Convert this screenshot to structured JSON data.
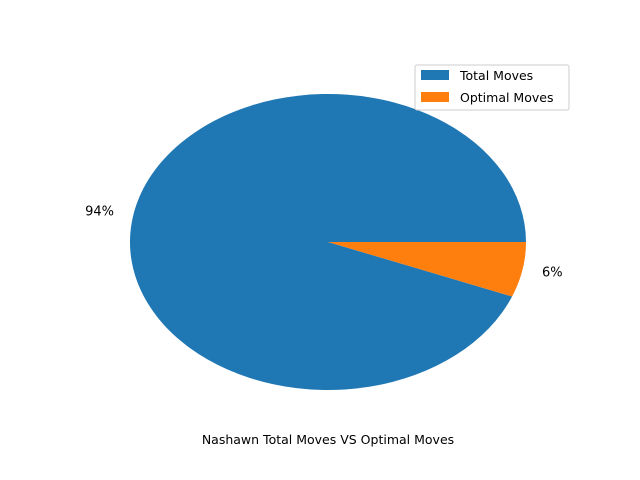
{
  "chart_data": {
    "type": "pie",
    "xlabel": "Nashawn  Total Moves VS Optimal Moves",
    "slices": [
      {
        "label": "Total Moves",
        "value": 94,
        "pct_label": "94%",
        "color": "#1f77b4"
      },
      {
        "label": "Optimal Moves",
        "value": 6,
        "pct_label": "6%",
        "color": "#ff7f0e"
      }
    ],
    "legend_position": "top-right",
    "start_angle_deg": 0,
    "direction": "counterclockwise"
  }
}
